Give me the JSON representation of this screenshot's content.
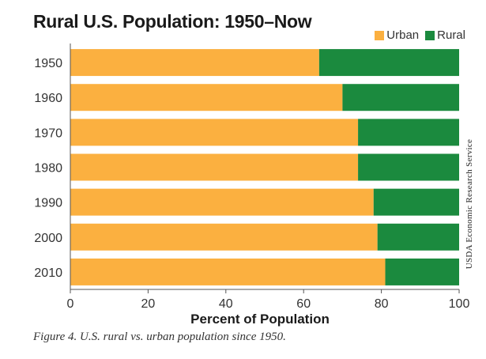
{
  "title": "Rural U.S. Population: 1950–Now",
  "caption": "Figure 4. U.S. rural vs. urban population since 1950.",
  "credit": "USDA Economic Research Service",
  "colors": {
    "urban": "#FBB040",
    "rural": "#1B8A3E",
    "axis": "#555555"
  },
  "chart_data": {
    "type": "bar",
    "orientation": "horizontal",
    "stacked": true,
    "categories": [
      "1950",
      "1960",
      "1970",
      "1980",
      "1990",
      "2000",
      "2010"
    ],
    "series": [
      {
        "name": "Urban",
        "values": [
          64,
          70,
          74,
          74,
          78,
          79,
          81
        ]
      },
      {
        "name": "Rural",
        "values": [
          36,
          30,
          26,
          26,
          22,
          21,
          19
        ]
      }
    ],
    "xlabel": "Percent of Population",
    "ylabel": "",
    "xlim": [
      0,
      100
    ],
    "xticks": [
      "0",
      "20",
      "40",
      "60",
      "80",
      "100"
    ],
    "legend": "top-right",
    "grid": false
  }
}
